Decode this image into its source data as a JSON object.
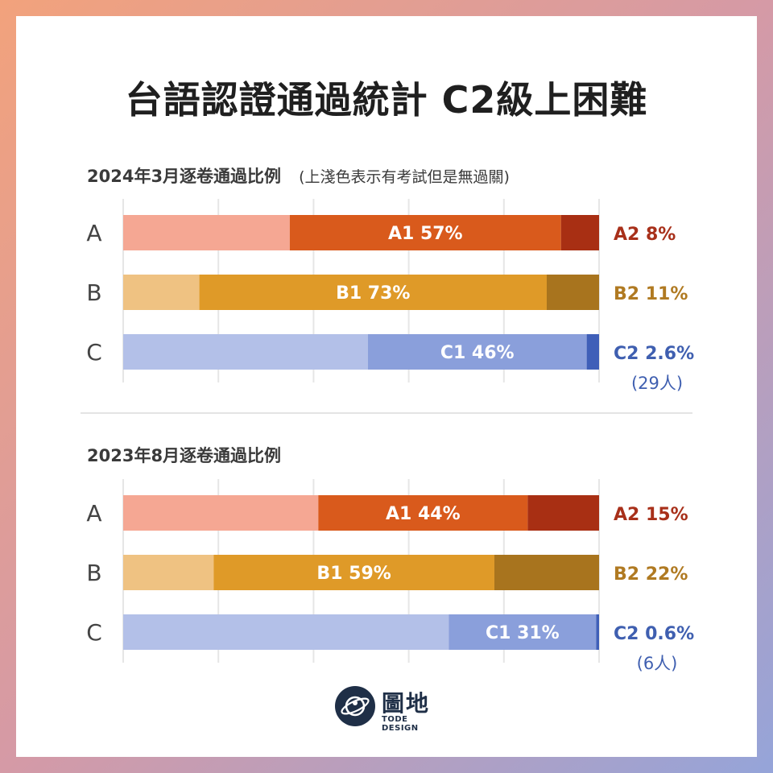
{
  "title": "台語認證通過統計 C2級上困難",
  "chart_data": [
    {
      "type": "bar",
      "title": "2024年3月逐卷通過比例",
      "note": "(上淺色表示有考試但是無過關)",
      "stacked": true,
      "grid": true,
      "categories": [
        "A",
        "B",
        "C"
      ],
      "rows": [
        {
          "category": "A",
          "fail_pct": 35,
          "lower_label": "A1 57%",
          "lower_pct": 57,
          "upper_label": "A2 8%",
          "upper_pct": 8,
          "sub": "",
          "colors": {
            "fail": "#f5a793",
            "lower": "#d95a1c",
            "upper": "#a82f13",
            "text": "#a8301a"
          }
        },
        {
          "category": "B",
          "fail_pct": 16,
          "lower_label": "B1 73%",
          "lower_pct": 73,
          "upper_label": "B2 11%",
          "upper_pct": 11,
          "sub": "",
          "colors": {
            "fail": "#efc282",
            "lower": "#df9a28",
            "upper": "#a8741e",
            "text": "#b07a22"
          }
        },
        {
          "category": "C",
          "fail_pct": 51.4,
          "lower_label": "C1 46%",
          "lower_pct": 46,
          "upper_label": "C2 2.6%",
          "upper_pct": 2.6,
          "sub": "(29人)",
          "colors": {
            "fail": "#b3c0e8",
            "lower": "#8a9fdb",
            "upper": "#3f5fb8",
            "text": "#3f5fb0"
          }
        }
      ]
    },
    {
      "type": "bar",
      "title": "2023年8月逐卷通過比例",
      "note": "",
      "stacked": true,
      "grid": true,
      "categories": [
        "A",
        "B",
        "C"
      ],
      "rows": [
        {
          "category": "A",
          "fail_pct": 41,
          "lower_label": "A1 44%",
          "lower_pct": 44,
          "upper_label": "A2 15%",
          "upper_pct": 15,
          "sub": "",
          "colors": {
            "fail": "#f5a793",
            "lower": "#d95a1c",
            "upper": "#a82f13",
            "text": "#a8301a"
          }
        },
        {
          "category": "B",
          "fail_pct": 19,
          "lower_label": "B1 59%",
          "lower_pct": 59,
          "upper_label": "B2 22%",
          "upper_pct": 22,
          "sub": "",
          "colors": {
            "fail": "#efc282",
            "lower": "#df9a28",
            "upper": "#a8741e",
            "text": "#b07a22"
          }
        },
        {
          "category": "C",
          "fail_pct": 68.4,
          "lower_label": "C1 31%",
          "lower_pct": 31,
          "upper_label": "C2 0.6%",
          "upper_pct": 0.6,
          "sub": "(6人)",
          "colors": {
            "fail": "#b3c0e8",
            "lower": "#8a9fdb",
            "upper": "#3f5fb8",
            "text": "#3f5fb0"
          }
        }
      ]
    }
  ],
  "logo": {
    "main": "圖地",
    "sub": "TODE DESIGN",
    "icon": "planet-icon"
  }
}
